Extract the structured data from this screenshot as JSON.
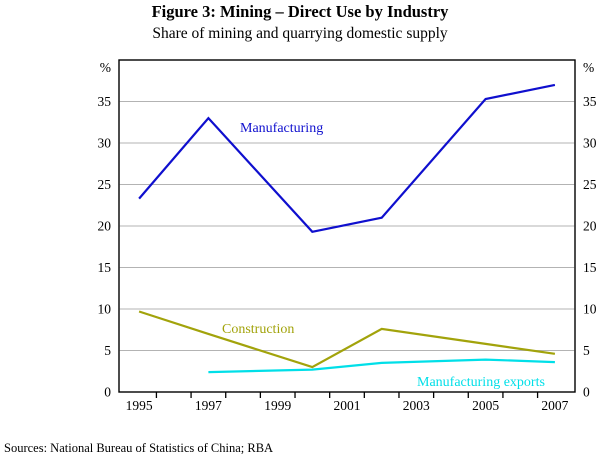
{
  "figure": {
    "title": "Figure 3: Mining – Direct Use by Industry",
    "subtitle": "Share of mining and quarrying domestic supply",
    "source": "Sources: National Bureau of Statistics of China; RBA"
  },
  "chart_data": {
    "type": "line",
    "title": "Figure 3: Mining – Direct Use by Industry",
    "subtitle": "Share of mining and quarrying domestic supply",
    "unit": "%",
    "x_axis": {
      "min": 1994.42,
      "max": 2007.58,
      "labels": [
        "1995",
        "1997",
        "1999",
        "2001",
        "2003",
        "2005",
        "2007"
      ],
      "label_years": [
        1995,
        1997,
        1999,
        2001,
        2003,
        2005,
        2007
      ],
      "ticks": [
        1995.5,
        1996.5,
        1997.5,
        1998.5,
        1999.5,
        2000.5,
        2001.5,
        2002.5,
        2003.5,
        2004.5,
        2005.5,
        2006.5
      ]
    },
    "y_axis": {
      "min": 0,
      "max": 40,
      "unit": "%",
      "gridlines": [
        5,
        10,
        15,
        20,
        25,
        30,
        35
      ],
      "tick_labels": [
        "0",
        "5",
        "10",
        "15",
        "20",
        "25",
        "30",
        "35"
      ],
      "tick_values": [
        0,
        5,
        10,
        15,
        20,
        25,
        30,
        35
      ],
      "grid_color": "#b3b3b3",
      "mirrored_right": true
    },
    "series": [
      {
        "name": "Manufacturing",
        "color": "#0f0fce",
        "x": [
          1995,
          1997,
          2000,
          2002,
          2005,
          2007
        ],
        "values": [
          23.3,
          33.0,
          19.3,
          21.0,
          35.3,
          37.0
        ]
      },
      {
        "name": "Construction",
        "color": "#a2a30b",
        "x": [
          1995,
          1997,
          2000,
          2002,
          2005,
          2007
        ],
        "values": [
          9.7,
          7.0,
          3.0,
          7.6,
          5.8,
          4.6
        ]
      },
      {
        "name": "Manufacturing exports",
        "color": "#00dfe8",
        "x": [
          1997,
          2000,
          2002,
          2005,
          2007
        ],
        "values": [
          2.4,
          2.7,
          3.5,
          3.9,
          3.6
        ]
      }
    ]
  }
}
